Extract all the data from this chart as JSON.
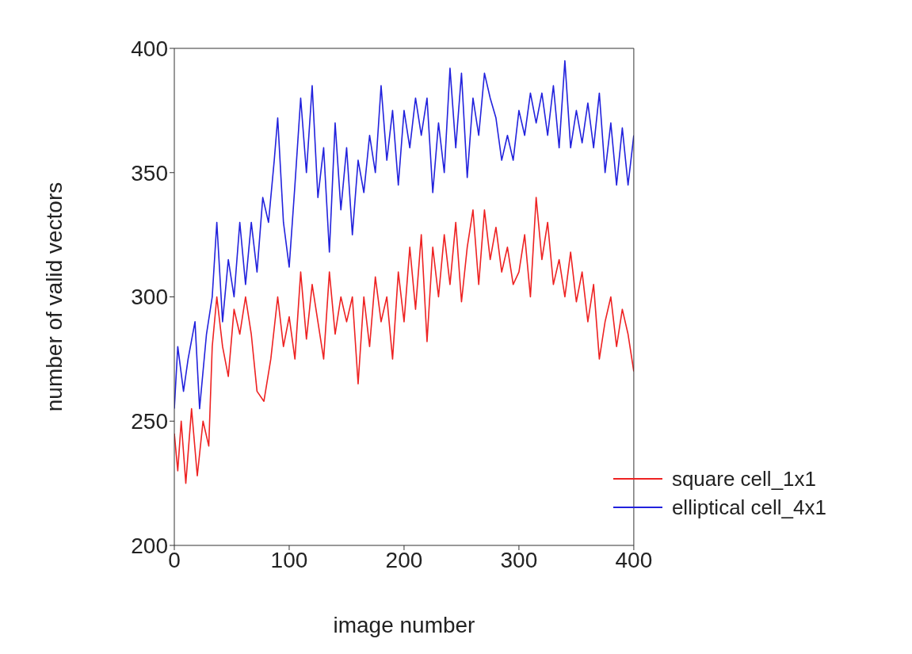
{
  "chart_data": {
    "type": "line",
    "xlabel": "image number",
    "ylabel": "number of valid vectors",
    "xlim": [
      0,
      400
    ],
    "ylim": [
      200,
      400
    ],
    "xticks": [
      0,
      100,
      200,
      300,
      400
    ],
    "yticks": [
      200,
      250,
      300,
      350,
      400
    ],
    "legend": "bottom right",
    "marker": "none",
    "line_style": "solid",
    "series": [
      {
        "name": "square cell_1x1",
        "color": "#ee2222",
        "x": [
          0,
          3,
          6,
          10,
          15,
          20,
          25,
          30,
          33,
          37,
          42,
          47,
          52,
          57,
          62,
          67,
          72,
          78,
          84,
          90,
          95,
          100,
          105,
          110,
          115,
          120,
          125,
          130,
          135,
          140,
          145,
          150,
          155,
          160,
          165,
          170,
          175,
          180,
          185,
          190,
          195,
          200,
          205,
          210,
          215,
          220,
          225,
          230,
          235,
          240,
          245,
          250,
          255,
          260,
          265,
          270,
          275,
          280,
          285,
          290,
          295,
          300,
          305,
          310,
          315,
          320,
          325,
          330,
          335,
          340,
          345,
          350,
          355,
          360,
          365,
          370,
          375,
          380,
          385,
          390,
          395,
          400
        ],
        "values": [
          245,
          230,
          250,
          225,
          255,
          228,
          250,
          240,
          280,
          300,
          280,
          268,
          295,
          285,
          300,
          285,
          262,
          258,
          275,
          300,
          280,
          292,
          275,
          310,
          283,
          305,
          290,
          275,
          310,
          285,
          300,
          290,
          300,
          265,
          300,
          280,
          308,
          290,
          300,
          275,
          310,
          290,
          320,
          295,
          325,
          282,
          320,
          300,
          325,
          305,
          330,
          298,
          320,
          335,
          305,
          335,
          315,
          328,
          310,
          320,
          305,
          310,
          325,
          300,
          340,
          315,
          330,
          305,
          315,
          300,
          318,
          298,
          310,
          290,
          305,
          275,
          290,
          300,
          280,
          295,
          285,
          270
        ]
      },
      {
        "name": "elliptical cell_4x1",
        "color": "#2222dd",
        "x": [
          0,
          3,
          8,
          12,
          18,
          22,
          28,
          33,
          37,
          42,
          47,
          52,
          57,
          62,
          67,
          72,
          77,
          82,
          87,
          90,
          95,
          100,
          105,
          110,
          115,
          120,
          125,
          130,
          135,
          140,
          145,
          150,
          155,
          160,
          165,
          170,
          175,
          180,
          185,
          190,
          195,
          200,
          205,
          210,
          215,
          220,
          225,
          230,
          235,
          240,
          245,
          250,
          255,
          260,
          265,
          270,
          275,
          280,
          285,
          290,
          295,
          300,
          305,
          310,
          315,
          320,
          325,
          330,
          335,
          340,
          345,
          350,
          355,
          360,
          365,
          370,
          375,
          380,
          385,
          390,
          395,
          400
        ],
        "values": [
          255,
          280,
          262,
          275,
          290,
          255,
          285,
          300,
          330,
          290,
          315,
          300,
          330,
          305,
          330,
          310,
          340,
          330,
          355,
          372,
          330,
          312,
          345,
          380,
          350,
          385,
          340,
          360,
          318,
          370,
          335,
          360,
          325,
          355,
          342,
          365,
          350,
          385,
          355,
          375,
          345,
          375,
          360,
          380,
          365,
          380,
          342,
          370,
          350,
          392,
          360,
          390,
          348,
          380,
          365,
          390,
          380,
          372,
          355,
          365,
          355,
          375,
          365,
          382,
          370,
          382,
          365,
          385,
          360,
          395,
          360,
          375,
          362,
          378,
          360,
          382,
          350,
          370,
          345,
          368,
          345,
          365
        ]
      }
    ]
  }
}
